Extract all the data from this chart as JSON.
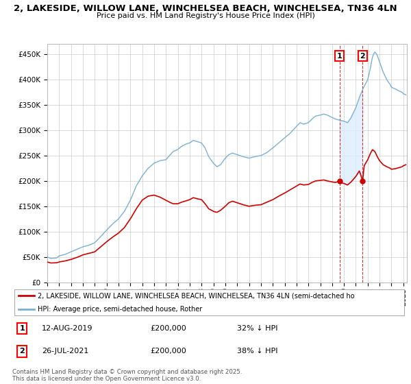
{
  "title_line1": "2, LAKESIDE, WILLOW LANE, WINCHELSEA BEACH, WINCHELSEA, TN36 4LN",
  "title_line2": "Price paid vs. HM Land Registry's House Price Index (HPI)",
  "property_color": "#cc0000",
  "hpi_color": "#7bafd4",
  "shade_color": "#ddeeff",
  "background_color": "#ffffff",
  "plot_bg_color": "#ffffff",
  "grid_color": "#cccccc",
  "ylim": [
    0,
    470000
  ],
  "yticks": [
    0,
    50000,
    100000,
    150000,
    200000,
    250000,
    300000,
    350000,
    400000,
    450000
  ],
  "ytick_labels": [
    "£0",
    "£50K",
    "£100K",
    "£150K",
    "£200K",
    "£250K",
    "£300K",
    "£350K",
    "£400K",
    "£450K"
  ],
  "xlim_start": 1995.0,
  "xlim_end": 2025.3,
  "xtick_years": [
    1995,
    1996,
    1997,
    1998,
    1999,
    2000,
    2001,
    2002,
    2003,
    2004,
    2005,
    2006,
    2007,
    2008,
    2009,
    2010,
    2011,
    2012,
    2013,
    2014,
    2015,
    2016,
    2017,
    2018,
    2019,
    2020,
    2021,
    2022,
    2023,
    2024,
    2025
  ],
  "legend_property": "2, LAKESIDE, WILLOW LANE, WINCHELSEA BEACH, WINCHELSEA, TN36 4LN (semi-detached ho",
  "legend_hpi": "HPI: Average price, semi-detached house, Rother",
  "ann1_x": 2019.62,
  "ann2_x": 2021.57,
  "ann1_y": 200000,
  "ann2_y": 200000,
  "ann1_label": "1",
  "ann2_label": "2",
  "ann1_date": "12-AUG-2019",
  "ann2_date": "26-JUL-2021",
  "ann1_price": "£200,000",
  "ann2_price": "£200,000",
  "ann1_pct": "32% ↓ HPI",
  "ann2_pct": "38% ↓ HPI",
  "footer": "Contains HM Land Registry data © Crown copyright and database right 2025.\nThis data is licensed under the Open Government Licence v3.0."
}
